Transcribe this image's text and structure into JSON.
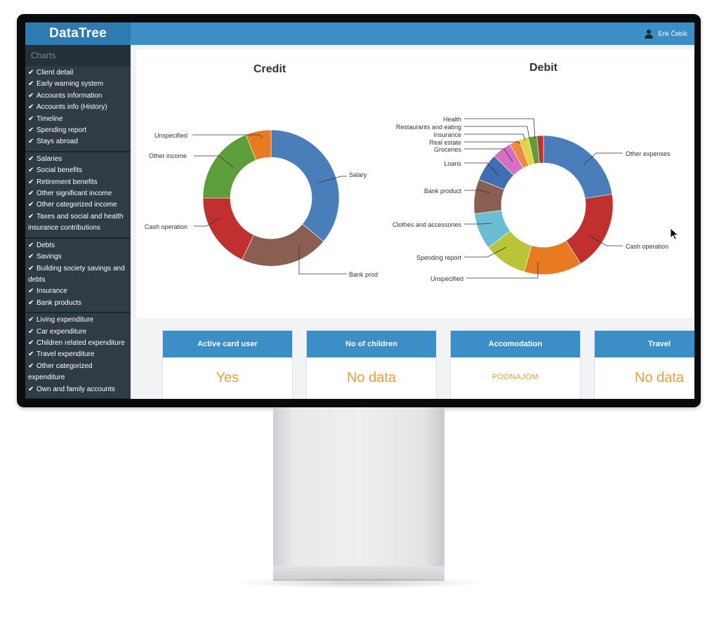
{
  "app": {
    "title": "DataTree",
    "user_name": "Erik Čebík"
  },
  "sidebar": {
    "title": "Charts",
    "groups": [
      {
        "items": [
          {
            "label": "Client detail"
          },
          {
            "label": "Early warning system"
          },
          {
            "label": "Accounts information"
          },
          {
            "label": "Accounts info (History)"
          },
          {
            "label": "Timeline"
          },
          {
            "label": "Spending report"
          },
          {
            "label": "Stays abroad"
          }
        ]
      },
      {
        "items": [
          {
            "label": "Salaries"
          },
          {
            "label": "Social benefits"
          },
          {
            "label": "Retirement benefits"
          },
          {
            "label": "Other significant income"
          },
          {
            "label": "Other categorized income"
          },
          {
            "label": "Taxes and social and health insurance contributions"
          }
        ]
      },
      {
        "items": [
          {
            "label": "Debts"
          },
          {
            "label": "Savings"
          },
          {
            "label": "Building society savings and debts"
          },
          {
            "label": "Insurance"
          },
          {
            "label": "Bank products"
          }
        ]
      },
      {
        "items": [
          {
            "label": "Living expenditure"
          },
          {
            "label": "Car expenditure"
          },
          {
            "label": "Children related expenditure"
          },
          {
            "label": "Travel expenditure"
          },
          {
            "label": "Other categorized expenditure"
          },
          {
            "label": "Own and family accounts"
          }
        ]
      }
    ]
  },
  "chart_data": [
    {
      "type": "pie",
      "title": "Credit",
      "donut": true,
      "categories": [
        "Salary",
        "Bank prod",
        "Cash operation",
        "Other income",
        "Unspecified"
      ],
      "values": [
        36,
        21,
        18,
        19,
        6
      ],
      "colors": [
        "#4a7ebb",
        "#8b5e52",
        "#c0302e",
        "#5d9e3a",
        "#e87a22"
      ]
    },
    {
      "type": "pie",
      "title": "Debit",
      "donut": true,
      "categories": [
        "Other expenses",
        "Cash operation",
        "Unspecified",
        "Spending report",
        "Clothes and accessories",
        "Bank product",
        "Loans",
        "Groceries",
        "Real estate",
        "Insurance",
        "Restaurants and eating",
        "Health"
      ],
      "values": [
        22.5,
        18.5,
        13.5,
        10,
        8.5,
        8,
        6.5,
        4.5,
        2.3,
        2.2,
        2,
        1.5
      ],
      "colors": [
        "#4a7ebb",
        "#c0302e",
        "#e87a22",
        "#b9c436",
        "#6bbdd1",
        "#8b5e52",
        "#3f6fb0",
        "#d46fc4",
        "#f08a3a",
        "#e6d24a",
        "#5d9e3a",
        "#c0302e"
      ]
    }
  ],
  "info_cards": [
    {
      "title": "Active card user",
      "value": "Yes"
    },
    {
      "title": "No of children",
      "value": "No data"
    },
    {
      "title": "Accomodation",
      "value": "PODNAJOM"
    },
    {
      "title": "Travel",
      "value": "No data"
    }
  ]
}
